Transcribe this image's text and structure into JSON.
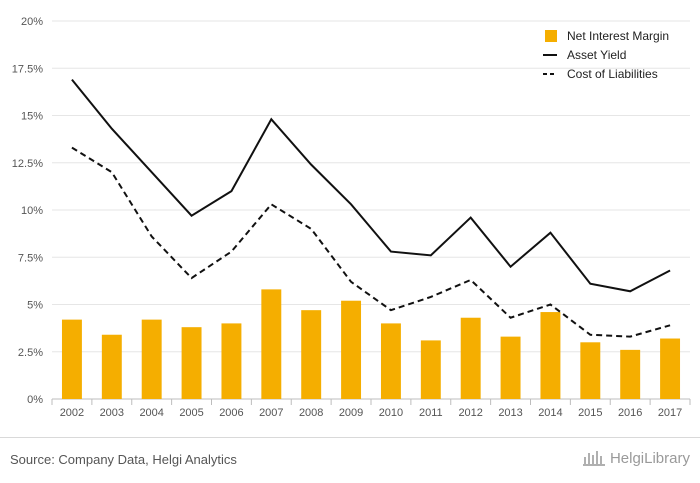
{
  "chart_data": {
    "type": "bar",
    "categories": [
      "2002",
      "2003",
      "2004",
      "2005",
      "2006",
      "2007",
      "2008",
      "2009",
      "2010",
      "2011",
      "2012",
      "2013",
      "2014",
      "2015",
      "2016",
      "2017"
    ],
    "series": [
      {
        "name": "Net Interest Margin",
        "kind": "bar",
        "color": "#f5ae00",
        "values": [
          4.2,
          3.4,
          4.2,
          3.8,
          4.0,
          5.8,
          4.7,
          5.2,
          4.0,
          3.1,
          4.3,
          3.3,
          4.6,
          3.0,
          2.6,
          3.2
        ]
      },
      {
        "name": "Asset Yield",
        "kind": "line",
        "style": "solid",
        "color": "#111111",
        "values": [
          16.9,
          14.3,
          12.0,
          9.7,
          11.0,
          14.8,
          12.4,
          10.3,
          7.8,
          7.6,
          9.6,
          7.0,
          8.8,
          6.1,
          5.7,
          6.8
        ]
      },
      {
        "name": "Cost of Liabilities",
        "kind": "line",
        "style": "dashed",
        "color": "#111111",
        "values": [
          13.3,
          12.0,
          8.6,
          6.4,
          7.8,
          10.3,
          9.0,
          6.2,
          4.7,
          5.4,
          6.3,
          4.3,
          5.0,
          3.4,
          3.3,
          3.9
        ]
      }
    ],
    "y_ticks": [
      "0%",
      "2.5%",
      "5%",
      "7.5%",
      "10%",
      "12.5%",
      "15%",
      "17.5%",
      "20%"
    ],
    "ylim": [
      0,
      20
    ],
    "y_unit": "%",
    "grid": true,
    "legend_position": "top-right"
  },
  "footer": {
    "source": "Source: Company Data, Helgi Analytics",
    "brand": "HelgiLibrary"
  }
}
